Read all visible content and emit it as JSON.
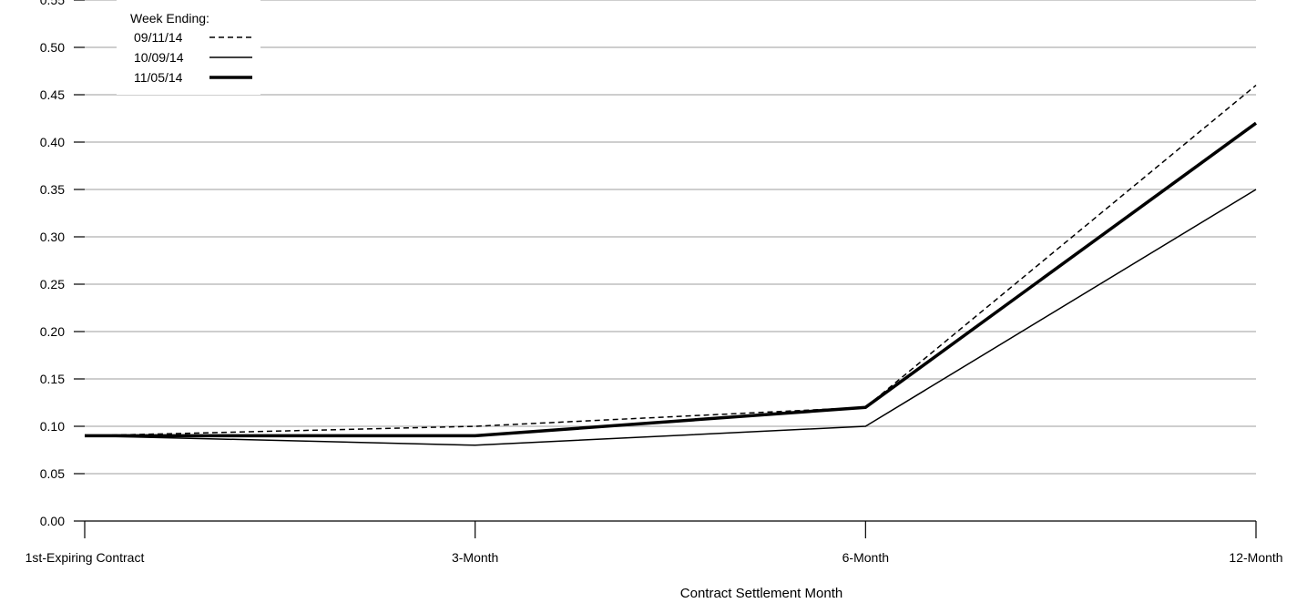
{
  "chart_data": {
    "type": "line",
    "title": "",
    "xlabel": "Contract Settlement Month",
    "ylabel": "",
    "categories": [
      "1st-Expiring Contract",
      "3-Month",
      "6-Month",
      "12-Month"
    ],
    "ylim": [
      0,
      0.55
    ],
    "yticks": [
      "0.00",
      "0.05",
      "0.10",
      "0.15",
      "0.20",
      "0.25",
      "0.30",
      "0.35",
      "0.40",
      "0.45",
      "0.50",
      "0.55"
    ],
    "grid": "horizontal",
    "legend": {
      "title": "Week Ending:",
      "placement": "top-left"
    },
    "series": [
      {
        "name": "09/11/14",
        "style": "dashed",
        "color": "#000000",
        "values": [
          0.09,
          0.1,
          0.12,
          0.46
        ]
      },
      {
        "name": "10/09/14",
        "style": "thin",
        "color": "#000000",
        "values": [
          0.09,
          0.08,
          0.1,
          0.35
        ]
      },
      {
        "name": "11/05/14",
        "style": "thick",
        "color": "#000000",
        "values": [
          0.09,
          0.09,
          0.12,
          0.42
        ]
      }
    ]
  }
}
